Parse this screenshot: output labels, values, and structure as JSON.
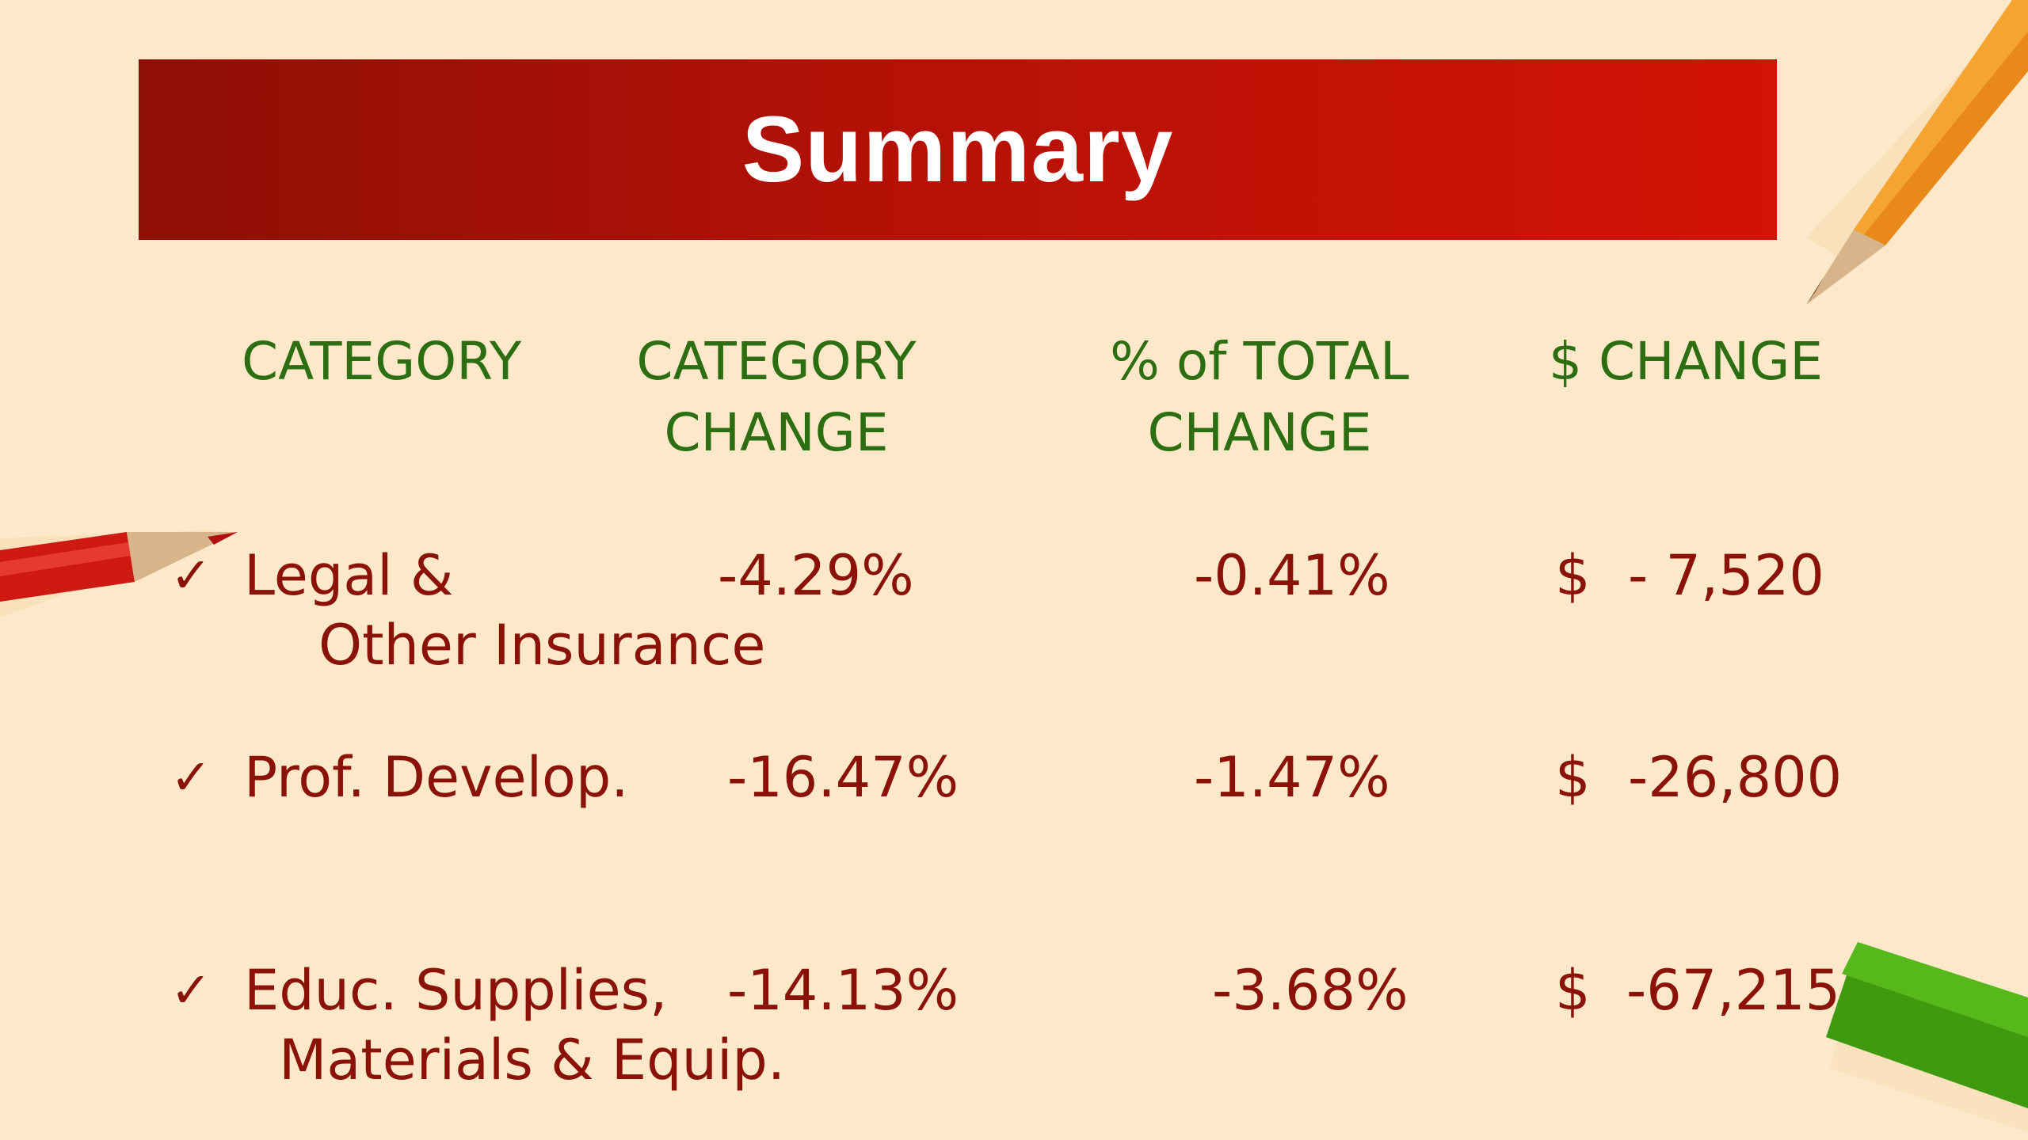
{
  "slide": {
    "title": "Summary",
    "headers": {
      "category": "CATEGORY",
      "category_change_line1": "CATEGORY",
      "category_change_line2": "CHANGE",
      "pct_total_line1": "% of TOTAL",
      "pct_total_line2": "CHANGE",
      "dollar_change": "$ CHANGE"
    },
    "check_mark": "✓",
    "rows": [
      {
        "category_line1": "Legal &",
        "category_line2": "Other Insurance",
        "category_change": "-4.29%",
        "pct_total_change": "-0.41%",
        "dollar_sign": "$",
        "dollar_change": "- 7,520"
      },
      {
        "category_line1": "Prof. Develop.",
        "category_line2": "",
        "category_change": "-16.47%",
        "pct_total_change": "-1.47%",
        "dollar_sign": "$",
        "dollar_change": "-26,800"
      },
      {
        "category_line1": "Educ. Supplies,",
        "category_line2": "Materials & Equip.",
        "category_change": "-14.13%",
        "pct_total_change": "-3.68%",
        "dollar_sign": "$",
        "dollar_change": "-67,215"
      }
    ],
    "colors": {
      "background": "#fde9c9",
      "title_bar": "#b41106",
      "header_text": "#2e6e12",
      "body_text": "#8a1208"
    },
    "decorations": [
      "orange-pencil-icon",
      "red-pencil-icon",
      "green-pencil-icon"
    ]
  }
}
